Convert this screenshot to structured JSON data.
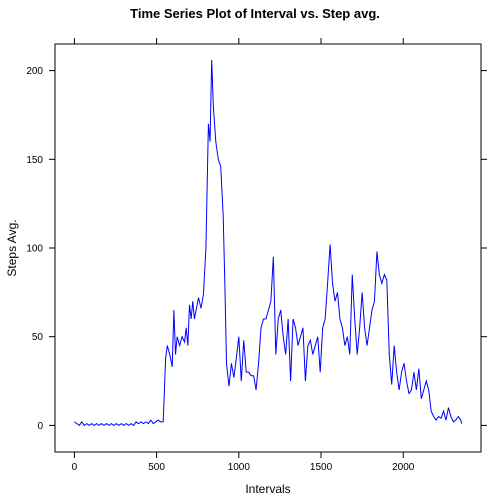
{
  "chart_data": {
    "type": "line",
    "title": "Time Series Plot of Interval vs. Step avg.",
    "xlabel": "Intervals",
    "ylabel": "Steps Avg.",
    "xlim": [
      -118,
      2473
    ],
    "ylim": [
      -15,
      215
    ],
    "xticks": [
      0,
      500,
      1000,
      1500,
      2000
    ],
    "yticks": [
      0,
      50,
      100,
      150,
      200
    ],
    "grid": false,
    "legend": "none",
    "series": [
      {
        "color": "#0000ff",
        "points": [
          [
            0,
            2
          ],
          [
            15,
            1
          ],
          [
            30,
            0
          ],
          [
            45,
            2
          ],
          [
            60,
            0
          ],
          [
            75,
            1
          ],
          [
            90,
            0
          ],
          [
            105,
            1
          ],
          [
            120,
            0
          ],
          [
            135,
            1
          ],
          [
            150,
            0
          ],
          [
            165,
            1
          ],
          [
            180,
            0
          ],
          [
            195,
            1
          ],
          [
            210,
            0
          ],
          [
            225,
            1
          ],
          [
            240,
            0
          ],
          [
            255,
            1
          ],
          [
            270,
            0
          ],
          [
            285,
            1
          ],
          [
            300,
            0
          ],
          [
            315,
            1
          ],
          [
            330,
            0
          ],
          [
            345,
            1
          ],
          [
            360,
            0
          ],
          [
            375,
            2
          ],
          [
            390,
            1
          ],
          [
            405,
            2
          ],
          [
            420,
            1
          ],
          [
            435,
            2
          ],
          [
            450,
            1
          ],
          [
            465,
            3
          ],
          [
            480,
            1
          ],
          [
            495,
            2
          ],
          [
            510,
            3
          ],
          [
            525,
            2
          ],
          [
            540,
            2
          ],
          [
            555,
            38
          ],
          [
            565,
            45
          ],
          [
            580,
            40
          ],
          [
            595,
            33
          ],
          [
            605,
            65
          ],
          [
            615,
            40
          ],
          [
            625,
            50
          ],
          [
            640,
            45
          ],
          [
            655,
            50
          ],
          [
            670,
            47
          ],
          [
            680,
            55
          ],
          [
            690,
            45
          ],
          [
            700,
            68
          ],
          [
            710,
            60
          ],
          [
            720,
            70
          ],
          [
            730,
            60
          ],
          [
            740,
            65
          ],
          [
            755,
            72
          ],
          [
            770,
            66
          ],
          [
            785,
            74
          ],
          [
            800,
            100
          ],
          [
            815,
            170
          ],
          [
            825,
            160
          ],
          [
            835,
            206
          ],
          [
            845,
            180
          ],
          [
            860,
            160
          ],
          [
            875,
            150
          ],
          [
            890,
            146
          ],
          [
            905,
            118
          ],
          [
            915,
            80
          ],
          [
            925,
            35
          ],
          [
            940,
            22
          ],
          [
            955,
            35
          ],
          [
            970,
            27
          ],
          [
            985,
            38
          ],
          [
            1000,
            50
          ],
          [
            1015,
            25
          ],
          [
            1030,
            48
          ],
          [
            1045,
            30
          ],
          [
            1060,
            30
          ],
          [
            1075,
            28
          ],
          [
            1090,
            28
          ],
          [
            1105,
            20
          ],
          [
            1120,
            35
          ],
          [
            1135,
            55
          ],
          [
            1150,
            60
          ],
          [
            1165,
            60
          ],
          [
            1180,
            65
          ],
          [
            1195,
            70
          ],
          [
            1210,
            95
          ],
          [
            1225,
            40
          ],
          [
            1240,
            60
          ],
          [
            1255,
            65
          ],
          [
            1270,
            50
          ],
          [
            1285,
            40
          ],
          [
            1300,
            60
          ],
          [
            1315,
            25
          ],
          [
            1330,
            60
          ],
          [
            1345,
            55
          ],
          [
            1360,
            45
          ],
          [
            1375,
            50
          ],
          [
            1390,
            55
          ],
          [
            1405,
            25
          ],
          [
            1420,
            45
          ],
          [
            1435,
            48
          ],
          [
            1450,
            40
          ],
          [
            1465,
            45
          ],
          [
            1480,
            50
          ],
          [
            1495,
            30
          ],
          [
            1510,
            55
          ],
          [
            1525,
            60
          ],
          [
            1540,
            80
          ],
          [
            1555,
            102
          ],
          [
            1570,
            80
          ],
          [
            1585,
            70
          ],
          [
            1600,
            75
          ],
          [
            1615,
            60
          ],
          [
            1630,
            55
          ],
          [
            1645,
            45
          ],
          [
            1660,
            50
          ],
          [
            1675,
            40
          ],
          [
            1690,
            85
          ],
          [
            1705,
            60
          ],
          [
            1720,
            40
          ],
          [
            1735,
            55
          ],
          [
            1750,
            75
          ],
          [
            1765,
            55
          ],
          [
            1780,
            45
          ],
          [
            1795,
            55
          ],
          [
            1810,
            65
          ],
          [
            1825,
            70
          ],
          [
            1840,
            98
          ],
          [
            1855,
            85
          ],
          [
            1870,
            80
          ],
          [
            1885,
            85
          ],
          [
            1900,
            82
          ],
          [
            1915,
            40
          ],
          [
            1930,
            23
          ],
          [
            1945,
            45
          ],
          [
            1960,
            30
          ],
          [
            1975,
            20
          ],
          [
            1990,
            30
          ],
          [
            2005,
            35
          ],
          [
            2020,
            25
          ],
          [
            2035,
            18
          ],
          [
            2050,
            20
          ],
          [
            2065,
            30
          ],
          [
            2080,
            20
          ],
          [
            2095,
            32
          ],
          [
            2110,
            15
          ],
          [
            2125,
            20
          ],
          [
            2140,
            25
          ],
          [
            2155,
            20
          ],
          [
            2170,
            8
          ],
          [
            2185,
            5
          ],
          [
            2200,
            3
          ],
          [
            2215,
            5
          ],
          [
            2230,
            4
          ],
          [
            2245,
            8
          ],
          [
            2260,
            3
          ],
          [
            2275,
            10
          ],
          [
            2290,
            5
          ],
          [
            2305,
            2
          ],
          [
            2320,
            3
          ],
          [
            2335,
            5
          ],
          [
            2350,
            3
          ],
          [
            2355,
            1
          ]
        ]
      }
    ]
  }
}
